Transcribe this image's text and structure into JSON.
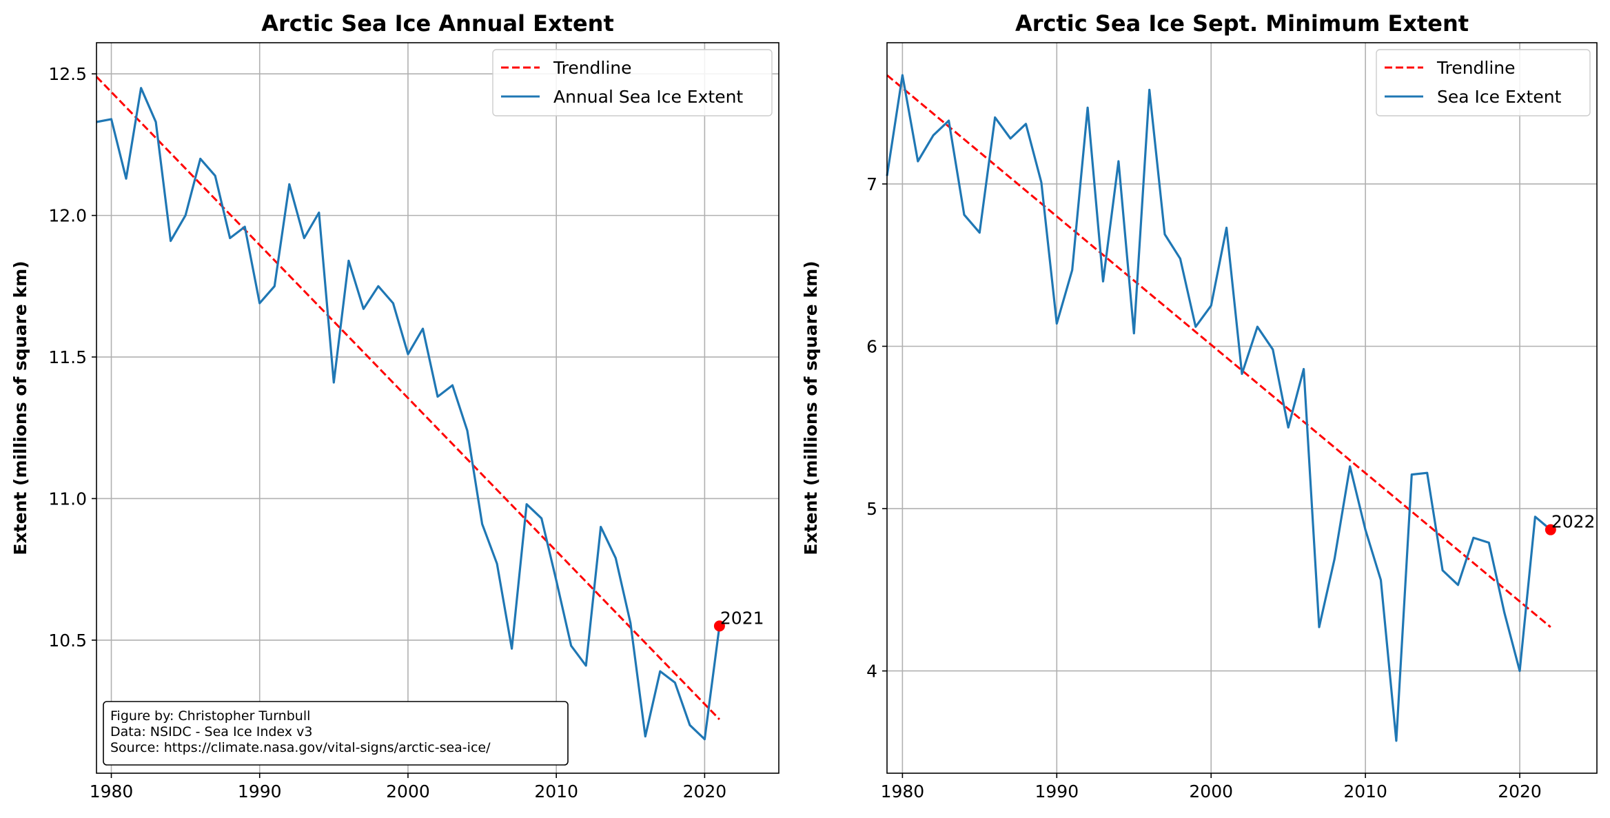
{
  "chart_data": [
    {
      "type": "line",
      "title": "Arctic Sea Ice Annual Extent",
      "xlabel": "",
      "ylabel": "Extent (millions of square km)",
      "xlim": [
        1979,
        2025
      ],
      "ylim": [
        10.03,
        12.61
      ],
      "xticks": [
        1980,
        1990,
        2000,
        2010,
        2020
      ],
      "yticks": [
        10.5,
        11.0,
        11.5,
        12.0,
        12.5
      ],
      "grid": true,
      "legend": "top-right",
      "series": [
        {
          "name": "Trendline",
          "style": "dashed",
          "color": "#ff0000",
          "x": [
            1979,
            2021
          ],
          "values": [
            12.49,
            10.22
          ]
        },
        {
          "name": "Annual Sea Ice Extent",
          "style": "solid",
          "color": "#1f77b4",
          "x": [
            1979,
            1980,
            1981,
            1982,
            1983,
            1984,
            1985,
            1986,
            1987,
            1988,
            1989,
            1990,
            1991,
            1992,
            1993,
            1994,
            1995,
            1996,
            1997,
            1998,
            1999,
            2000,
            2001,
            2002,
            2003,
            2004,
            2005,
            2006,
            2007,
            2008,
            2009,
            2010,
            2011,
            2012,
            2013,
            2014,
            2015,
            2016,
            2017,
            2018,
            2019,
            2020,
            2021
          ],
          "values": [
            12.33,
            12.34,
            12.13,
            12.45,
            12.33,
            11.91,
            12.0,
            12.2,
            12.14,
            11.92,
            11.96,
            11.69,
            11.75,
            12.11,
            11.92,
            12.01,
            11.41,
            11.84,
            11.67,
            11.75,
            11.69,
            11.51,
            11.6,
            11.36,
            11.4,
            11.24,
            10.91,
            10.77,
            10.47,
            10.98,
            10.93,
            10.71,
            10.48,
            10.41,
            10.9,
            10.79,
            10.56,
            10.16,
            10.39,
            10.35,
            10.2,
            10.15,
            10.55
          ]
        }
      ],
      "highlight": {
        "x": 2021,
        "y": 10.55,
        "label": "2021",
        "color": "#ff0000"
      },
      "credit_lines": [
        "Figure by: Christopher Turnbull",
        "Data: NSIDC - Sea Ice Index v3",
        "Source: https://climate.nasa.gov/vital-signs/arctic-sea-ice/"
      ]
    },
    {
      "type": "line",
      "title": "Arctic Sea Ice Sept. Minimum Extent",
      "xlabel": "",
      "ylabel": "Extent (millions of square km)",
      "xlim": [
        1979,
        2025
      ],
      "ylim": [
        3.37,
        7.87
      ],
      "xticks": [
        1980,
        1990,
        2000,
        2010,
        2020
      ],
      "yticks": [
        4,
        5,
        6,
        7
      ],
      "grid": true,
      "legend": "top-right",
      "series": [
        {
          "name": "Trendline",
          "style": "dashed",
          "color": "#ff0000",
          "x": [
            1979,
            2022
          ],
          "values": [
            7.67,
            4.27
          ]
        },
        {
          "name": "Sea Ice Extent",
          "style": "solid",
          "color": "#1f77b4",
          "x": [
            1979,
            1980,
            1981,
            1982,
            1983,
            1984,
            1985,
            1986,
            1987,
            1988,
            1989,
            1990,
            1991,
            1992,
            1993,
            1994,
            1995,
            1996,
            1997,
            1998,
            1999,
            2000,
            2001,
            2002,
            2003,
            2004,
            2005,
            2006,
            2007,
            2008,
            2009,
            2010,
            2011,
            2012,
            2013,
            2014,
            2015,
            2016,
            2017,
            2018,
            2019,
            2020,
            2021,
            2022
          ],
          "values": [
            7.05,
            7.67,
            7.14,
            7.3,
            7.39,
            6.81,
            6.7,
            7.41,
            7.28,
            7.37,
            7.01,
            6.14,
            6.47,
            7.47,
            6.4,
            7.14,
            6.08,
            7.58,
            6.69,
            6.54,
            6.12,
            6.25,
            6.73,
            5.83,
            6.12,
            5.98,
            5.5,
            5.86,
            4.27,
            4.69,
            5.26,
            4.87,
            4.56,
            3.57,
            5.21,
            5.22,
            4.62,
            4.53,
            4.82,
            4.79,
            4.36,
            4.0,
            4.95,
            4.87
          ]
        }
      ],
      "highlight": {
        "x": 2022,
        "y": 4.87,
        "label": "2022",
        "color": "#ff0000"
      }
    }
  ]
}
